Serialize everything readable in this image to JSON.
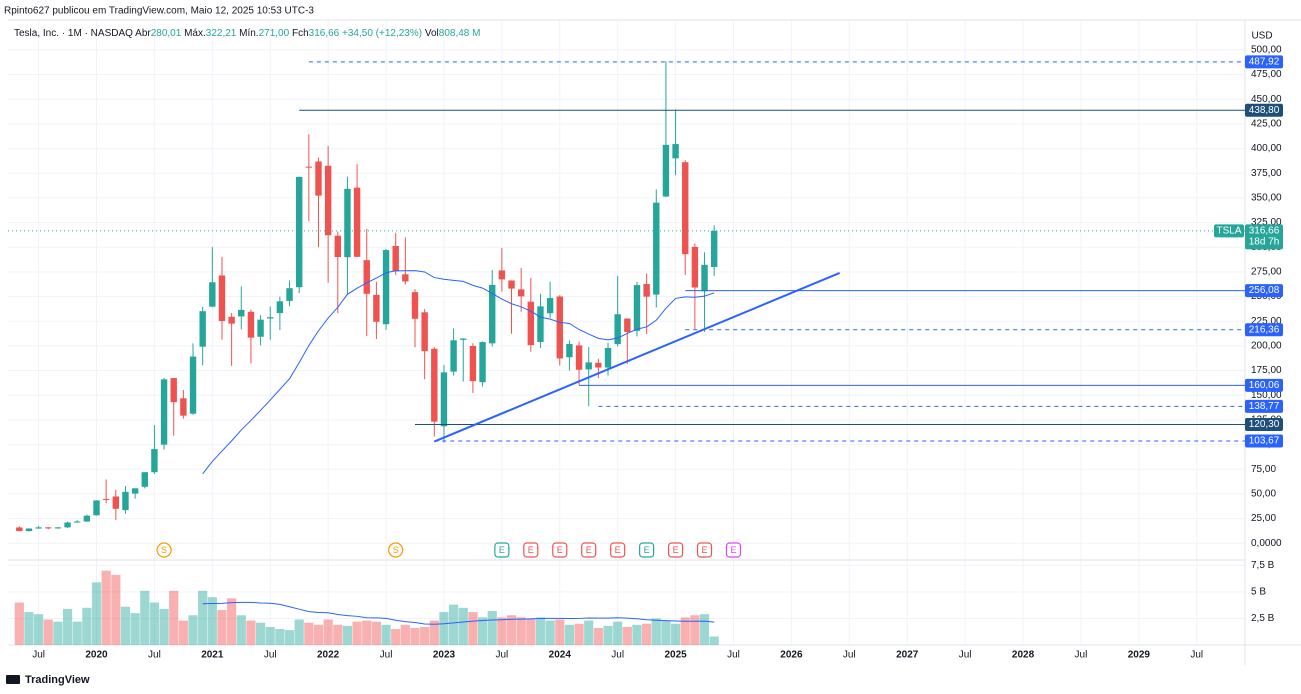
{
  "header": {
    "published": "Rpinto627 publicou em TradingView.com, Maio 12, 2025 10:53 UTC-3",
    "symbol": "Tesla, Inc. · 1M · NASDAQ",
    "open_label": "Abr",
    "open": "280,01",
    "high_label": "Máx.",
    "high": "322,21",
    "low_label": "Mín.",
    "low": "271,00",
    "close_label": "Fch",
    "close": "316,66",
    "change": "+34,50 (+12,23%)",
    "volume_label": "Vol",
    "volume": "808,48 M"
  },
  "footer": {
    "brand": "TradingView"
  },
  "chart_data": {
    "type": "candlestick",
    "currency": "USD",
    "x": [
      "2019-05",
      "2019-06",
      "2019-07",
      "2019-08",
      "2019-09",
      "2019-10",
      "2019-11",
      "2019-12",
      "2020-01",
      "2020-02",
      "2020-03",
      "2020-04",
      "2020-05",
      "2020-06",
      "2020-07",
      "2020-08",
      "2020-09",
      "2020-10",
      "2020-11",
      "2020-12",
      "2021-01",
      "2021-02",
      "2021-03",
      "2021-04",
      "2021-05",
      "2021-06",
      "2021-07",
      "2021-08",
      "2021-09",
      "2021-10",
      "2021-11",
      "2021-12",
      "2022-01",
      "2022-02",
      "2022-03",
      "2022-04",
      "2022-05",
      "2022-06",
      "2022-07",
      "2022-08",
      "2022-09",
      "2022-10",
      "2022-11",
      "2022-12",
      "2023-01",
      "2023-02",
      "2023-03",
      "2023-04",
      "2023-05",
      "2023-06",
      "2023-07",
      "2023-08",
      "2023-09",
      "2023-10",
      "2023-11",
      "2023-12",
      "2024-01",
      "2024-02",
      "2024-03",
      "2024-04",
      "2024-05",
      "2024-06",
      "2024-07",
      "2024-08",
      "2024-09",
      "2024-10",
      "2024-11",
      "2024-12",
      "2025-01",
      "2025-02",
      "2025-03",
      "2025-04",
      "2025-05"
    ],
    "open": [
      16.0,
      12.3,
      14.9,
      16.1,
      15.0,
      16.1,
      21.0,
      22.0,
      28.3,
      44.9,
      47.4,
      33.6,
      50.3,
      57.2,
      72.0,
      99.9,
      167.4,
      146.9,
      131.3,
      199.2,
      239.8,
      271.4,
      229.5,
      229.9,
      234.6,
      209.3,
      227.8,
      233.3,
      245.6,
      259.5,
      381.7,
      386.9,
      382.6,
      311.7,
      289.9,
      360.4,
      286.9,
      251.7,
      222.0,
      301.3,
      272.6,
      254.5,
      234.1,
      197.1,
      118.5,
      173.9,
      206.2,
      199.9,
      163.2,
      202.6,
      276.5,
      266.3,
      257.3,
      244.8,
      204.0,
      233.1,
      250.1,
      188.5,
      200.5,
      176.2,
      182.9,
      178.1,
      201.8,
      227.7,
      215.3,
      262.7,
      252.0,
      351.4,
      390.1,
      386.2,
      300.3,
      255.4,
      280.01
    ],
    "high": [
      17.2,
      15.2,
      17.5,
      16.4,
      16.4,
      22.0,
      23.4,
      29.0,
      43.5,
      64.6,
      54.1,
      58.0,
      55.1,
      72.0,
      119.7,
      167.5,
      167.5,
      155.3,
      202.6,
      239.6,
      300.1,
      290.2,
      233.3,
      260.3,
      236.8,
      231.2,
      240.0,
      250.0,
      266.3,
      371.7,
      414.5,
      390.9,
      402.7,
      315.9,
      371.6,
      384.3,
      318.5,
      265.0,
      298.3,
      314.7,
      310.0,
      257.5,
      237.4,
      198.9,
      180.7,
      217.7,
      207.8,
      202.7,
      204.5,
      276.9,
      299.3,
      266.5,
      278.9,
      268.9,
      252.8,
      265.1,
      251.4,
      205.6,
      204.5,
      198.9,
      187.0,
      203.2,
      271.0,
      228.0,
      265.0,
      273.5,
      358.6,
      488.5,
      439.7,
      388.2,
      303.9,
      294.9,
      322.21
    ],
    "low": [
      12.1,
      11.9,
      14.6,
      14.1,
      14.7,
      15.3,
      20.7,
      21.7,
      28.0,
      40.8,
      23.4,
      29.8,
      45.1,
      55.6,
      70.1,
      94.9,
      109.0,
      126.4,
      130.2,
      180.3,
      239.1,
      206.3,
      179.8,
      216.8,
      182.3,
      200.5,
      206.3,
      216.0,
      240.3,
      253.5,
      326.4,
      300.0,
      264.0,
      233.3,
      252.0,
      290.0,
      209.9,
      206.9,
      216.2,
      271.8,
      262.5,
      198.6,
      166.2,
      108.2,
      101.8,
      169.9,
      163.9,
      152.4,
      158.8,
      199.4,
      255.0,
      212.4,
      234.6,
      194.1,
      197.9,
      228.2,
      180.1,
      175.0,
      160.5,
      138.8,
      167.4,
      170.0,
      199.5,
      182.0,
      209.7,
      212.1,
      238.9,
      350.8,
      373.0,
      272.0,
      217.0,
      214.3,
      271.0
    ],
    "close": [
      12.3,
      14.9,
      16.1,
      15.0,
      16.1,
      21.0,
      22.0,
      27.9,
      43.4,
      44.5,
      34.9,
      52.1,
      55.7,
      72.0,
      95.4,
      166.1,
      143.0,
      129.3,
      189.2,
      235.2,
      264.5,
      225.2,
      222.6,
      236.5,
      208.4,
      226.6,
      229.1,
      245.2,
      258.5,
      371.3,
      381.6,
      352.3,
      312.2,
      290.1,
      359.2,
      290.3,
      252.8,
      224.5,
      297.1,
      275.6,
      265.3,
      227.5,
      194.7,
      123.2,
      173.2,
      205.7,
      207.5,
      164.3,
      203.9,
      261.8,
      267.4,
      258.1,
      250.2,
      200.8,
      240.1,
      248.5,
      187.3,
      201.9,
      175.8,
      183.3,
      178.1,
      197.9,
      232.1,
      214.1,
      261.6,
      249.9,
      345.2,
      403.8,
      404.6,
      293.0,
      259.2,
      282.2,
      316.66
    ],
    "volume": [
      4.0,
      3.1,
      2.9,
      2.4,
      2.2,
      3.4,
      2.2,
      3.5,
      5.9,
      7.0,
      6.6,
      3.6,
      3.0,
      5.1,
      4.0,
      3.4,
      5.1,
      2.3,
      2.8,
      5.1,
      4.5,
      3.3,
      4.4,
      2.8,
      2.3,
      2.1,
      1.7,
      1.5,
      1.4,
      2.4,
      2.1,
      1.9,
      2.4,
      1.9,
      1.8,
      2.2,
      2.3,
      2.2,
      1.9,
      1.5,
      1.9,
      1.6,
      1.7,
      2.3,
      3.1,
      3.8,
      3.5,
      3.1,
      2.6,
      3.2,
      2.6,
      2.8,
      2.6,
      2.5,
      2.6,
      2.3,
      2.4,
      1.9,
      2.0,
      2.3,
      1.6,
      1.8,
      2.2,
      1.7,
      1.9,
      2.0,
      2.5,
      2.3,
      2.0,
      2.6,
      2.8,
      2.9,
      0.8
    ],
    "up_color": "#26a69a",
    "down_color": "#ef5350",
    "ma_color": "#2962ff",
    "xlim": [
      "2019-03",
      "2029-12"
    ],
    "xticks": [
      {
        "value": "2019-07",
        "label": "Jul"
      },
      {
        "value": "2020-01",
        "label": "2020"
      },
      {
        "value": "2020-07",
        "label": "Jul"
      },
      {
        "value": "2021-01",
        "label": "2021"
      },
      {
        "value": "2021-07",
        "label": "Jul"
      },
      {
        "value": "2022-01",
        "label": "2022"
      },
      {
        "value": "2022-07",
        "label": "Jul"
      },
      {
        "value": "2023-01",
        "label": "2023"
      },
      {
        "value": "2023-07",
        "label": "Jul"
      },
      {
        "value": "2024-01",
        "label": "2024"
      },
      {
        "value": "2024-07",
        "label": "Jul"
      },
      {
        "value": "2025-01",
        "label": "2025"
      },
      {
        "value": "2025-07",
        "label": "Jul"
      },
      {
        "value": "2026-01",
        "label": "2026"
      },
      {
        "value": "2026-07",
        "label": "Jul"
      },
      {
        "value": "2027-01",
        "label": "2027"
      },
      {
        "value": "2027-07",
        "label": "Jul"
      },
      {
        "value": "2028-01",
        "label": "2028"
      },
      {
        "value": "2028-07",
        "label": "Jul"
      },
      {
        "value": "2029-01",
        "label": "2029"
      },
      {
        "value": "2029-07",
        "label": "Jul"
      }
    ],
    "ylim": [
      -17,
      505
    ],
    "yticks": [
      {
        "value": 0,
        "label": "0,0000"
      },
      {
        "value": 25,
        "label": "25,00"
      },
      {
        "value": 50,
        "label": "50,00"
      },
      {
        "value": 75,
        "label": "75,00"
      },
      {
        "value": 100,
        "label": "100,00"
      },
      {
        "value": 125,
        "label": "125,00"
      },
      {
        "value": 150,
        "label": "150,00"
      },
      {
        "value": 175,
        "label": "175,00"
      },
      {
        "value": 200,
        "label": "200,00"
      },
      {
        "value": 225,
        "label": "225,00"
      },
      {
        "value": 250,
        "label": "250,00"
      },
      {
        "value": 275,
        "label": "275,00"
      },
      {
        "value": 300,
        "label": "300,00"
      },
      {
        "value": 325,
        "label": "325,00"
      },
      {
        "value": 350,
        "label": "350,00"
      },
      {
        "value": 375,
        "label": "375,00"
      },
      {
        "value": 400,
        "label": "400,00"
      },
      {
        "value": 425,
        "label": "425,00"
      },
      {
        "value": 450,
        "label": "450,00"
      },
      {
        "value": 475,
        "label": "475,00"
      },
      {
        "value": 500,
        "label": "500,00"
      }
    ],
    "vol_ylim": [
      0,
      8
    ],
    "vol_yticks": [
      {
        "value": 2.5,
        "label": "2,5 B"
      },
      {
        "value": 5,
        "label": "5 B"
      },
      {
        "value": 7.5,
        "label": "7,5 B"
      }
    ],
    "grid": true,
    "hlines": [
      {
        "value": 487.92,
        "label": "487,92",
        "start": "2021-11",
        "style": "dashed",
        "color": "#2962ff"
      },
      {
        "value": 438.8,
        "label": "438,80",
        "start": "2021-10",
        "style": "solid",
        "color": "#1e4f79"
      },
      {
        "value": 256.08,
        "label": "256,08",
        "start": "2025-02",
        "style": "solid",
        "color": "#2962ff"
      },
      {
        "value": 216.36,
        "label": "216,36",
        "start": "2025-02",
        "style": "dashed",
        "color": "#2962ff"
      },
      {
        "value": 160.06,
        "label": "160,06",
        "start": "2024-03",
        "style": "solid",
        "color": "#2962ff"
      },
      {
        "value": 138.77,
        "label": "138,77",
        "start": "2024-05",
        "style": "dashed",
        "color": "#2962ff"
      },
      {
        "value": 120.3,
        "label": "120,30",
        "start": "2022-10",
        "style": "solid",
        "color": "#1e4f79"
      },
      {
        "value": 103.67,
        "label": "103,67",
        "start": "2022-12",
        "style": "dashed",
        "color": "#2962ff"
      }
    ],
    "trendline": {
      "x": [
        "2022-12",
        "2026-06"
      ],
      "values": [
        103,
        274
      ],
      "color": "#2962ff"
    },
    "last_price": {
      "value": 316.66,
      "label": "316,66",
      "ticker": "TSLA",
      "countdown": "18d 7h"
    },
    "events": [
      {
        "x": "2020-08",
        "label": "S",
        "color": "#ff9800"
      },
      {
        "x": "2022-08",
        "label": "S",
        "color": "#ff9800"
      },
      {
        "x": "2023-07",
        "label": "E",
        "color": "#26a69a"
      },
      {
        "x": "2023-10",
        "label": "E",
        "color": "#ef5350"
      },
      {
        "x": "2024-01",
        "label": "E",
        "color": "#ef5350"
      },
      {
        "x": "2024-04",
        "label": "E",
        "color": "#ef5350"
      },
      {
        "x": "2024-07",
        "label": "E",
        "color": "#ef5350"
      },
      {
        "x": "2024-10",
        "label": "E",
        "color": "#26a69a"
      },
      {
        "x": "2025-01",
        "label": "E",
        "color": "#ef5350"
      },
      {
        "x": "2025-04",
        "label": "E",
        "color": "#ef5350"
      },
      {
        "x": "2025-07",
        "label": "E",
        "color": "#e040fb"
      }
    ]
  }
}
